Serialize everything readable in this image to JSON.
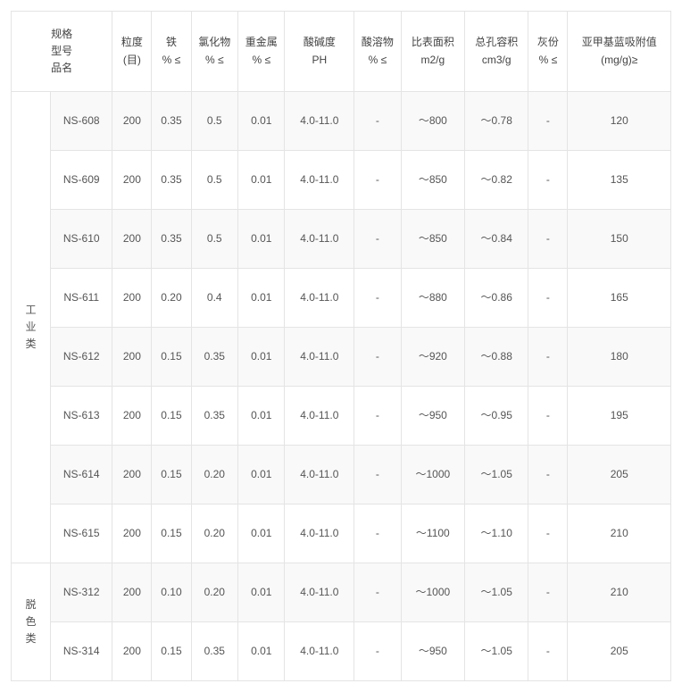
{
  "table": {
    "border_color": "#e4e4e4",
    "text_color": "#555555",
    "background_color": "#ffffff",
    "stripe_color": "#f9f9f9",
    "font_size_pt": 9,
    "columns": [
      {
        "key": "category",
        "lines": [
          "规格",
          "型号",
          "品名"
        ]
      },
      {
        "key": "model",
        "lines": [
          ""
        ]
      },
      {
        "key": "particle_size",
        "lines": [
          "粒度",
          "(目)"
        ]
      },
      {
        "key": "iron",
        "lines": [
          "铁",
          "% ≤"
        ]
      },
      {
        "key": "chloride",
        "lines": [
          "氯化物",
          "% ≤"
        ]
      },
      {
        "key": "heavy_metal",
        "lines": [
          "重金属",
          "% ≤"
        ]
      },
      {
        "key": "ph",
        "lines": [
          "酸碱度",
          "PH"
        ]
      },
      {
        "key": "acid_soluble",
        "lines": [
          "酸溶物",
          "% ≤"
        ]
      },
      {
        "key": "surface_area",
        "lines": [
          "比表面积",
          "m2/g"
        ]
      },
      {
        "key": "pore_volume",
        "lines": [
          "总孔容积",
          "cm3/g"
        ]
      },
      {
        "key": "ash",
        "lines": [
          "灰份",
          "% ≤"
        ]
      },
      {
        "key": "mb_adsorption",
        "lines": [
          "亚甲基蓝吸附值",
          "(mg/g)≥"
        ]
      }
    ],
    "groups": [
      {
        "category": "工业类",
        "rows": [
          {
            "model": "NS-608",
            "size": "200",
            "fe": "0.35",
            "cl": "0.5",
            "heavy": "0.01",
            "ph": "4.0-11.0",
            "acid": "-",
            "surf": "～800",
            "pore": "～0.78",
            "ash": "-",
            "mb": "120"
          },
          {
            "model": "NS-609",
            "size": "200",
            "fe": "0.35",
            "cl": "0.5",
            "heavy": "0.01",
            "ph": "4.0-11.0",
            "acid": "-",
            "surf": "～850",
            "pore": "～0.82",
            "ash": "-",
            "mb": "135"
          },
          {
            "model": "NS-610",
            "size": "200",
            "fe": "0.35",
            "cl": "0.5",
            "heavy": "0.01",
            "ph": "4.0-11.0",
            "acid": "-",
            "surf": "～850",
            "pore": "～0.84",
            "ash": "-",
            "mb": "150"
          },
          {
            "model": "NS-611",
            "size": "200",
            "fe": "0.20",
            "cl": "0.4",
            "heavy": "0.01",
            "ph": "4.0-11.0",
            "acid": "-",
            "surf": "～880",
            "pore": "～0.86",
            "ash": "-",
            "mb": "165"
          },
          {
            "model": "NS-612",
            "size": "200",
            "fe": "0.15",
            "cl": "0.35",
            "heavy": "0.01",
            "ph": "4.0-11.0",
            "acid": "-",
            "surf": "～920",
            "pore": "～0.88",
            "ash": "-",
            "mb": "180"
          },
          {
            "model": "NS-613",
            "size": "200",
            "fe": "0.15",
            "cl": "0.35",
            "heavy": "0.01",
            "ph": "4.0-11.0",
            "acid": "-",
            "surf": "～950",
            "pore": "～0.95",
            "ash": "-",
            "mb": "195"
          },
          {
            "model": "NS-614",
            "size": "200",
            "fe": "0.15",
            "cl": "0.20",
            "heavy": "0.01",
            "ph": "4.0-11.0",
            "acid": "-",
            "surf": "～1000",
            "pore": "～1.05",
            "ash": "-",
            "mb": "205"
          },
          {
            "model": "NS-615",
            "size": "200",
            "fe": "0.15",
            "cl": "0.20",
            "heavy": "0.01",
            "ph": "4.0-11.0",
            "acid": "-",
            "surf": "～1100",
            "pore": "～1.10",
            "ash": "-",
            "mb": "210"
          }
        ]
      },
      {
        "category": "脱色类",
        "rows": [
          {
            "model": "NS-312",
            "size": "200",
            "fe": "0.10",
            "cl": "0.20",
            "heavy": "0.01",
            "ph": "4.0-11.0",
            "acid": "-",
            "surf": "～1000",
            "pore": "～1.05",
            "ash": "-",
            "mb": "210"
          },
          {
            "model": "NS-314",
            "size": "200",
            "fe": "0.15",
            "cl": "0.35",
            "heavy": "0.01",
            "ph": "4.0-11.0",
            "acid": "-",
            "surf": "～950",
            "pore": "～1.05",
            "ash": "-",
            "mb": "205"
          }
        ]
      }
    ]
  }
}
